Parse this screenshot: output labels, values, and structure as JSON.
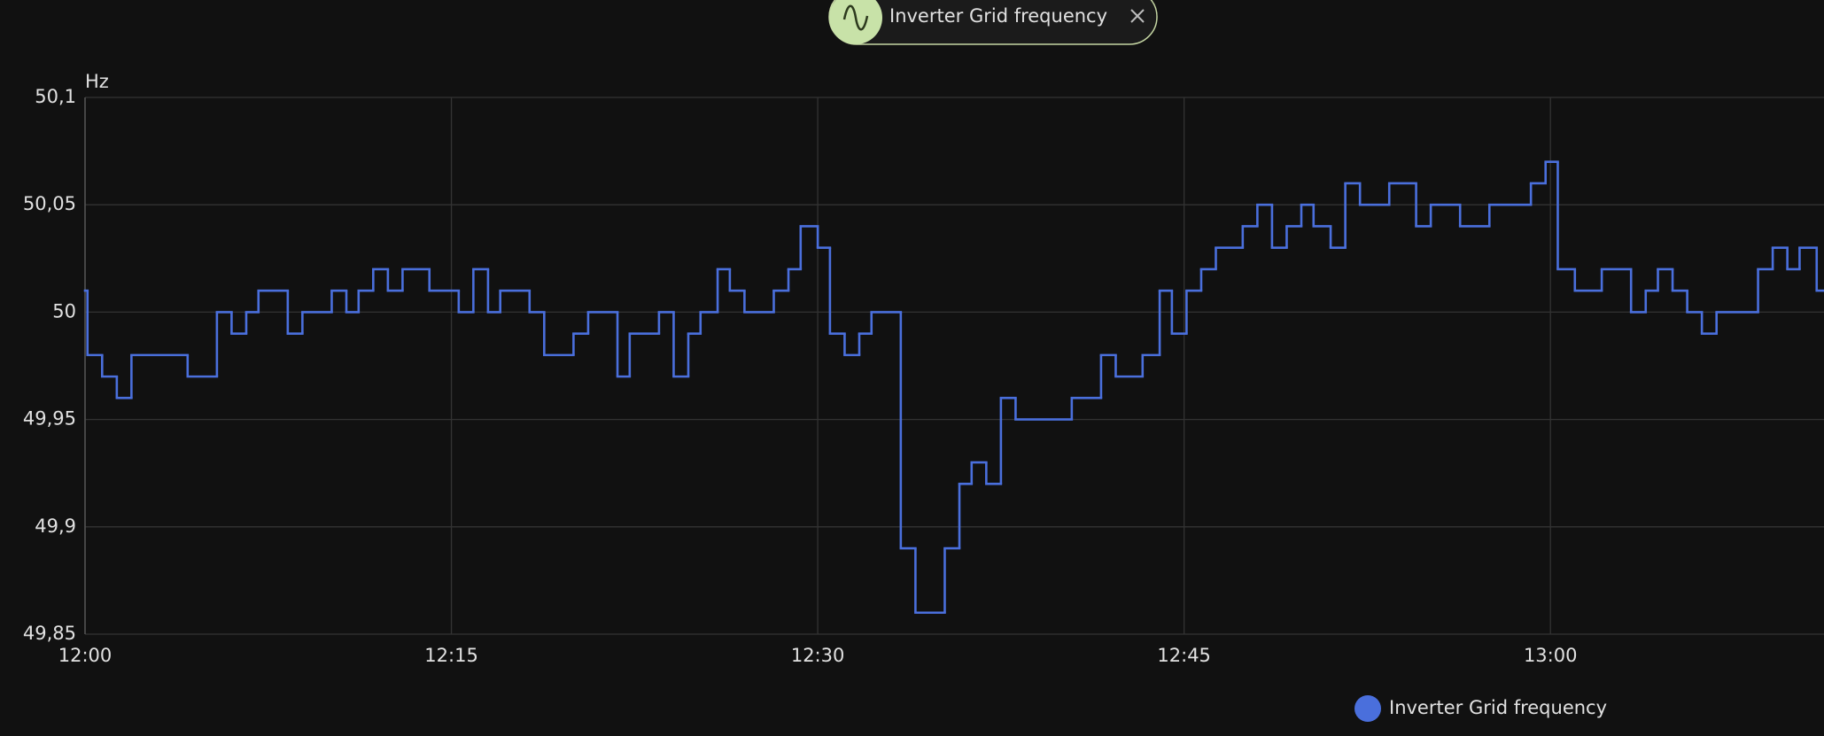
{
  "chart_data": {
    "type": "step",
    "y_unit": "Hz",
    "series": [
      {
        "name": "Inverter Grid frequency",
        "color": "#4a6fdc",
        "x": [
          720,
          720.1,
          720.7,
          721.3,
          721.9,
          724.2,
          725.4,
          726.0,
          726.6,
          727.1,
          728.3,
          728.9,
          730.1,
          730.7,
          731.2,
          731.8,
          732.4,
          733.0,
          734.1,
          735.3,
          735.9,
          736.5,
          737.0,
          738.2,
          738.8,
          740.0,
          740.6,
          741.8,
          742.3,
          743.5,
          744.1,
          744.7,
          745.2,
          745.9,
          746.4,
          747.0,
          748.2,
          748.8,
          749.3,
          750.0,
          750.5,
          751.1,
          751.7,
          752.2,
          753.4,
          754.0,
          755.2,
          755.8,
          756.3,
          756.9,
          757.5,
          758.1,
          760.4,
          761.6,
          762.2,
          763.3,
          764.0,
          764.5,
          765.1,
          765.7,
          766.3,
          767.4,
          768.0,
          768.6,
          769.2,
          769.8,
          770.3,
          771.0,
          771.6,
          772.2,
          773.4,
          774.5,
          775.1,
          776.3,
          777.5,
          779.2,
          779.8,
          780.3,
          781.0,
          782.1,
          783.3,
          783.9,
          784.4,
          785.0,
          785.6,
          786.2,
          786.8,
          788.5,
          789.1,
          789.7,
          790.2,
          790.9
        ],
        "values": [
          50.01,
          49.98,
          49.97,
          49.96,
          49.98,
          49.97,
          50.0,
          49.99,
          50.0,
          50.01,
          49.99,
          50.0,
          50.01,
          50.0,
          50.01,
          50.02,
          50.01,
          50.02,
          50.01,
          50.0,
          50.02,
          50.0,
          50.01,
          50.0,
          49.98,
          49.99,
          50.0,
          49.97,
          49.99,
          50.0,
          49.97,
          49.99,
          50.0,
          50.02,
          50.01,
          50.0,
          50.01,
          50.02,
          50.04,
          50.03,
          49.99,
          49.98,
          49.99,
          50.0,
          49.89,
          49.86,
          49.89,
          49.92,
          49.93,
          49.92,
          49.96,
          49.95,
          49.96,
          49.98,
          49.97,
          49.98,
          50.01,
          49.99,
          50.01,
          50.02,
          50.03,
          50.04,
          50.05,
          50.03,
          50.04,
          50.05,
          50.04,
          50.03,
          50.06,
          50.05,
          50.06,
          50.04,
          50.05,
          50.04,
          50.05,
          50.06,
          50.07,
          50.02,
          50.01,
          50.02,
          50.0,
          50.01,
          50.02,
          50.01,
          50.0,
          49.99,
          50.0,
          50.02,
          50.03,
          50.02,
          50.03,
          50.01
        ]
      }
    ],
    "xlim": [
      720,
      791.2
    ],
    "xticks": [
      {
        "value": 720,
        "label": "12:00"
      },
      {
        "value": 735,
        "label": "12:15"
      },
      {
        "value": 750,
        "label": "12:30"
      },
      {
        "value": 765,
        "label": "12:45"
      },
      {
        "value": 780,
        "label": "13:00"
      }
    ],
    "ylim": [
      49.85,
      50.1
    ],
    "yticks": [
      {
        "value": 49.85,
        "label": "49,85"
      },
      {
        "value": 49.9,
        "label": "49,9"
      },
      {
        "value": 49.95,
        "label": "49,95"
      },
      50,
      {
        "value": 50.05,
        "label": "50,05"
      },
      {
        "value": 50.1,
        "label": "50,1"
      }
    ],
    "grid": true
  }
}
